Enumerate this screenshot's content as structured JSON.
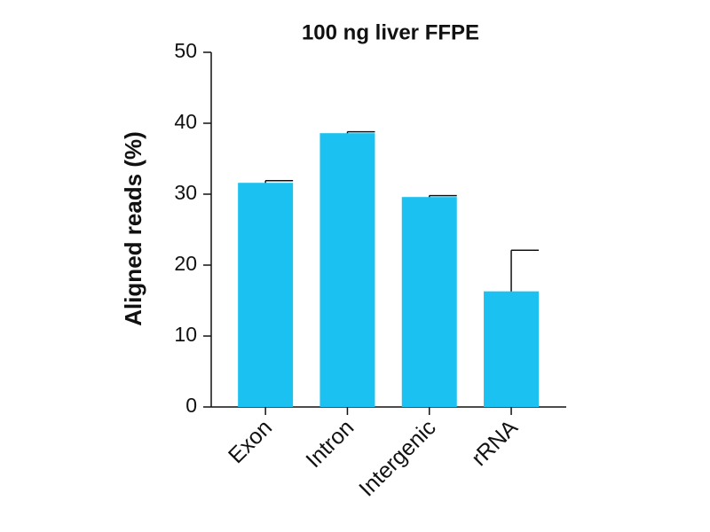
{
  "chart_data": {
    "type": "bar",
    "title": "100 ng liver FFPE",
    "y_label": "Aligned reads (%)",
    "categories": [
      "Exon",
      "Intron",
      "Intergenic",
      "rRNA"
    ],
    "values": [
      31.6,
      38.6,
      29.6,
      16.3
    ],
    "errors": [
      0.3,
      0.2,
      0.2,
      5.8
    ],
    "color": "#1bc1f0",
    "ylim": [
      0,
      50
    ],
    "yticks": [
      0,
      10,
      20,
      30,
      40,
      50
    ],
    "grid": false
  }
}
